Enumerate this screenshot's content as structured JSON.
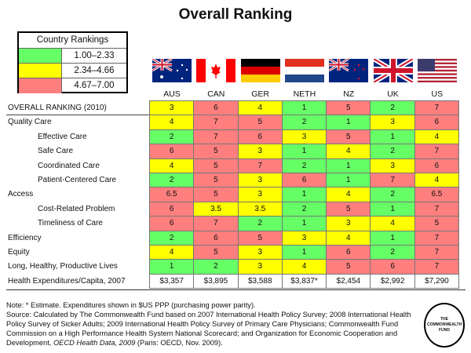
{
  "title": "Overall Ranking",
  "legend": {
    "title": "Country Rankings",
    "items": [
      {
        "range": "1.00–2.33",
        "color": "#66ff66"
      },
      {
        "range": "2.34–4.66",
        "color": "#ffff00"
      },
      {
        "range": "4.67–7.00",
        "color": "#ff7f7f"
      }
    ]
  },
  "countries": [
    {
      "code": "AUS",
      "flag": "australia-flag"
    },
    {
      "code": "CAN",
      "flag": "canada-flag"
    },
    {
      "code": "GER",
      "flag": "germany-flag"
    },
    {
      "code": "NETH",
      "flag": "netherlands-flag"
    },
    {
      "code": "NZ",
      "flag": "new-zealand-flag"
    },
    {
      "code": "UK",
      "flag": "uk-flag"
    },
    {
      "code": "US",
      "flag": "us-flag"
    }
  ],
  "rows": [
    {
      "label": "OVERALL RANKING (2010)",
      "indent": false,
      "values": [
        "3",
        "6",
        "4",
        "1",
        "5",
        "2",
        "7"
      ]
    },
    {
      "label": "Quality Care",
      "indent": false,
      "values": [
        "4",
        "7",
        "5",
        "2",
        "1",
        "3",
        "6"
      ]
    },
    {
      "label": "Effective Care",
      "indent": true,
      "values": [
        "2",
        "7",
        "6",
        "3",
        "5",
        "1",
        "4"
      ]
    },
    {
      "label": "Safe Care",
      "indent": true,
      "values": [
        "6",
        "5",
        "3",
        "1",
        "4",
        "2",
        "7"
      ]
    },
    {
      "label": "Coordinated Care",
      "indent": true,
      "values": [
        "4",
        "5",
        "7",
        "2",
        "1",
        "3",
        "6"
      ]
    },
    {
      "label": "Patient-Centered Care",
      "indent": true,
      "values": [
        "2",
        "5",
        "3",
        "6",
        "1",
        "7",
        "4"
      ]
    },
    {
      "label": "Access",
      "indent": false,
      "values": [
        "6.5",
        "5",
        "3",
        "1",
        "4",
        "2",
        "6.5"
      ]
    },
    {
      "label": "Cost-Related Problem",
      "indent": true,
      "values": [
        "6",
        "3.5",
        "3.5",
        "2",
        "5",
        "1",
        "7"
      ]
    },
    {
      "label": "Timeliness of Care",
      "indent": true,
      "values": [
        "6",
        "7",
        "2",
        "1",
        "3",
        "4",
        "5"
      ]
    },
    {
      "label": "Efficiency",
      "indent": false,
      "values": [
        "2",
        "6",
        "5",
        "3",
        "4",
        "1",
        "7"
      ]
    },
    {
      "label": "Equity",
      "indent": false,
      "values": [
        "4",
        "5",
        "3",
        "1",
        "6",
        "2",
        "7"
      ]
    },
    {
      "label": "Long, Healthy, Productive Lives",
      "indent": false,
      "values": [
        "1",
        "2",
        "3",
        "4",
        "5",
        "6",
        "7"
      ]
    },
    {
      "label": "Health Expenditures/Capita, 2007",
      "indent": false,
      "plain": true,
      "values": [
        "$3,357",
        "$3,895",
        "$3,588",
        "$3,837*",
        "$2,454",
        "$2,992",
        "$7,290"
      ]
    }
  ],
  "notes": {
    "line1": "Note: * Estimate. Expenditures shown in $US PPP (purchasing power parity).",
    "source_prefix": "Source: Calculated by The Commonwealth Fund based on 2007 International Health Policy Survey; 2008 International Health Policy Survey of Sicker Adults; 2009 International Health Policy Survey of Primary Care Physicians; Commonwealth Fund Commission on a High Performance Health System National Scorecard; and Organization for Economic Cooperation and Development, ",
    "source_italic": "OECD Health Data, 2009",
    "source_suffix": " (Paris: OECD, Nov. 2009)."
  },
  "logo": "THE COMMONWEALTH FUND"
}
